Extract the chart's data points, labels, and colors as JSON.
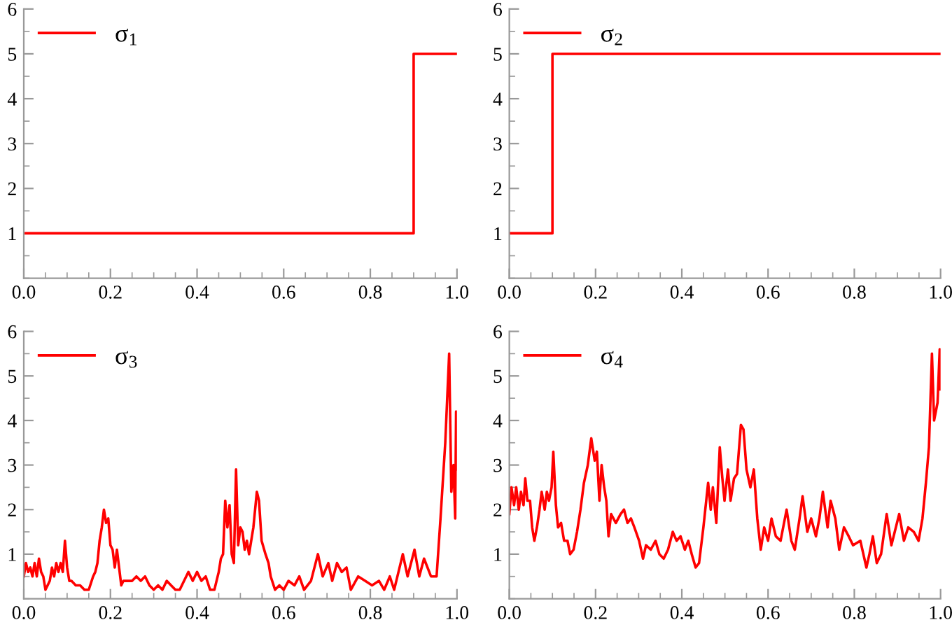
{
  "chart_data": [
    {
      "type": "step",
      "xlim": [
        0,
        1
      ],
      "ylim": [
        0,
        6
      ],
      "xticks": [
        {
          "value": 0,
          "label": "0.0"
        },
        {
          "value": 0.2,
          "label": "0.2"
        },
        {
          "value": 0.4,
          "label": "0.4"
        },
        {
          "value": 0.6,
          "label": "0.6"
        },
        {
          "value": 0.8,
          "label": "0.8"
        },
        {
          "value": 1,
          "label": "1.0"
        }
      ],
      "yticks": [
        1,
        2,
        3,
        4,
        5,
        6
      ],
      "grid": false,
      "legend": "top left",
      "series": [
        {
          "name": "σ$_{1}$",
          "color": "#ff0000",
          "x": [
            0,
            0.9,
            1
          ],
          "values": [
            1,
            5,
            5
          ]
        }
      ]
    },
    {
      "type": "step",
      "xlim": [
        0,
        1
      ],
      "ylim": [
        0,
        6
      ],
      "xticks": [
        {
          "value": 0,
          "label": "0.0"
        },
        {
          "value": 0.2,
          "label": "0.2"
        },
        {
          "value": 0.4,
          "label": "0.4"
        },
        {
          "value": 0.6,
          "label": "0.6"
        },
        {
          "value": 0.8,
          "label": "0.8"
        },
        {
          "value": 1,
          "label": "1.0"
        }
      ],
      "yticks": [
        1,
        2,
        3,
        4,
        5,
        6
      ],
      "grid": false,
      "legend": "top left",
      "series": [
        {
          "name": "σ$_{2}$",
          "color": "#ff0000",
          "x": [
            0,
            0.1,
            1
          ],
          "values": [
            1,
            5,
            5
          ]
        }
      ]
    },
    {
      "type": "line",
      "xlim": [
        0,
        1
      ],
      "ylim": [
        0,
        6
      ],
      "xticks": [
        {
          "value": 0,
          "label": "0.0"
        },
        {
          "value": 0.2,
          "label": "0.2"
        },
        {
          "value": 0.4,
          "label": "0.4"
        },
        {
          "value": 0.6,
          "label": "0.6"
        },
        {
          "value": 0.8,
          "label": "0.8"
        },
        {
          "value": 1,
          "label": "1.0"
        }
      ],
      "yticks": [
        1,
        2,
        3,
        4,
        5,
        6
      ],
      "grid": false,
      "legend": "top left",
      "series": [
        {
          "name": "σ$_{3}$",
          "color": "#ff0000",
          "x": [
            0,
            0.005,
            0.01,
            0.015,
            0.02,
            0.025,
            0.03,
            0.035,
            0.04,
            0.045,
            0.05,
            0.055,
            0.06,
            0.065,
            0.07,
            0.075,
            0.08,
            0.085,
            0.09,
            0.095,
            0.1,
            0.105,
            0.11,
            0.12,
            0.13,
            0.14,
            0.15,
            0.16,
            0.165,
            0.17,
            0.175,
            0.18,
            0.185,
            0.19,
            0.195,
            0.2,
            0.205,
            0.21,
            0.215,
            0.22,
            0.225,
            0.23,
            0.24,
            0.25,
            0.26,
            0.27,
            0.28,
            0.29,
            0.3,
            0.31,
            0.32,
            0.33,
            0.34,
            0.35,
            0.36,
            0.37,
            0.38,
            0.39,
            0.4,
            0.41,
            0.42,
            0.43,
            0.44,
            0.45,
            0.455,
            0.46,
            0.465,
            0.47,
            0.475,
            0.48,
            0.485,
            0.49,
            0.495,
            0.5,
            0.505,
            0.51,
            0.515,
            0.52,
            0.53,
            0.538,
            0.543,
            0.549,
            0.558,
            0.565,
            0.57,
            0.58,
            0.59,
            0.6,
            0.611,
            0.625,
            0.636,
            0.647,
            0.663,
            0.679,
            0.69,
            0.703,
            0.712,
            0.723,
            0.734,
            0.745,
            0.755,
            0.772,
            0.788,
            0.804,
            0.82,
            0.832,
            0.845,
            0.855,
            0.875,
            0.886,
            0.902,
            0.913,
            0.924,
            0.94,
            0.953,
            0.962,
            0.973,
            0.982,
            0.987,
            0.992,
            0.996,
            0.998,
            1
          ],
          "values": [
            0.5,
            0.8,
            0.6,
            0.7,
            0.5,
            0.8,
            0.5,
            0.9,
            0.6,
            0.5,
            0.2,
            0.3,
            0.4,
            0.7,
            0.5,
            0.8,
            0.6,
            0.8,
            0.6,
            1.3,
            0.7,
            0.4,
            0.4,
            0.3,
            0.3,
            0.2,
            0.2,
            0.5,
            0.6,
            0.8,
            1.3,
            1.6,
            2.0,
            1.7,
            1.8,
            1.2,
            1.1,
            0.7,
            1.1,
            0.7,
            0.3,
            0.4,
            0.4,
            0.4,
            0.5,
            0.4,
            0.5,
            0.3,
            0.2,
            0.3,
            0.2,
            0.4,
            0.3,
            0.2,
            0.2,
            0.4,
            0.6,
            0.4,
            0.6,
            0.4,
            0.5,
            0.2,
            0.2,
            0.6,
            0.9,
            1.0,
            2.2,
            1.6,
            2.1,
            1.0,
            0.8,
            2.9,
            1.2,
            1.6,
            1.5,
            1.1,
            1.3,
            1.0,
            1.6,
            2.4,
            2.2,
            1.3,
            1.0,
            0.8,
            0.5,
            0.2,
            0.3,
            0.2,
            0.4,
            0.3,
            0.5,
            0.2,
            0.4,
            1.0,
            0.5,
            0.8,
            0.4,
            0.8,
            0.6,
            0.7,
            0.2,
            0.5,
            0.4,
            0.3,
            0.4,
            0.2,
            0.5,
            0.2,
            1.0,
            0.5,
            1.1,
            0.5,
            0.9,
            0.5,
            0.5,
            1.8,
            3.5,
            5.5,
            2.4,
            3.0,
            1.8,
            4.2,
            2.9
          ]
        }
      ]
    },
    {
      "type": "line",
      "xlim": [
        0,
        1
      ],
      "ylim": [
        0,
        6
      ],
      "xticks": [
        {
          "value": 0,
          "label": "0.0"
        },
        {
          "value": 0.2,
          "label": "0.2"
        },
        {
          "value": 0.4,
          "label": "0.4"
        },
        {
          "value": 0.6,
          "label": "0.6"
        },
        {
          "value": 0.8,
          "label": "0.8"
        },
        {
          "value": 1,
          "label": "1.0"
        }
      ],
      "yticks": [
        1,
        2,
        3,
        4,
        5,
        6
      ],
      "grid": false,
      "legend": "top left",
      "series": [
        {
          "name": "σ$_{4}$",
          "color": "#ff0000",
          "x": [
            0,
            0.005,
            0.011,
            0.016,
            0.022,
            0.027,
            0.033,
            0.037,
            0.042,
            0.048,
            0.053,
            0.058,
            0.064,
            0.07,
            0.075,
            0.082,
            0.087,
            0.092,
            0.098,
            0.102,
            0.108,
            0.113,
            0.12,
            0.127,
            0.135,
            0.141,
            0.149,
            0.157,
            0.165,
            0.173,
            0.182,
            0.19,
            0.198,
            0.203,
            0.209,
            0.214,
            0.22,
            0.225,
            0.23,
            0.236,
            0.247,
            0.258,
            0.266,
            0.274,
            0.282,
            0.29,
            0.301,
            0.31,
            0.317,
            0.328,
            0.339,
            0.348,
            0.358,
            0.368,
            0.379,
            0.388,
            0.397,
            0.407,
            0.415,
            0.423,
            0.432,
            0.44,
            0.45,
            0.461,
            0.467,
            0.472,
            0.48,
            0.488,
            0.494,
            0.499,
            0.507,
            0.513,
            0.521,
            0.528,
            0.537,
            0.543,
            0.55,
            0.559,
            0.567,
            0.575,
            0.583,
            0.591,
            0.6,
            0.608,
            0.618,
            0.629,
            0.643,
            0.654,
            0.662,
            0.673,
            0.68,
            0.691,
            0.7,
            0.711,
            0.719,
            0.727,
            0.738,
            0.745,
            0.756,
            0.765,
            0.776,
            0.787,
            0.797,
            0.814,
            0.828,
            0.835,
            0.843,
            0.852,
            0.862,
            0.875,
            0.886,
            0.904,
            0.915,
            0.925,
            0.938,
            0.949,
            0.958,
            0.966,
            0.973,
            0.98,
            0.985,
            0.993,
            0.998,
            1
          ],
          "values": [
            1.9,
            2.5,
            2.1,
            2.5,
            2.0,
            2.4,
            2.1,
            2.7,
            2.2,
            2.2,
            1.6,
            1.3,
            1.6,
            2.0,
            2.4,
            2.0,
            2.4,
            2.2,
            2.5,
            3.3,
            2.1,
            1.6,
            1.7,
            1.3,
            1.3,
            1.0,
            1.1,
            1.5,
            2.0,
            2.6,
            3.0,
            3.6,
            3.1,
            3.3,
            2.2,
            3.0,
            2.5,
            2.2,
            1.4,
            1.9,
            1.7,
            1.9,
            2.0,
            1.7,
            1.8,
            1.6,
            1.3,
            0.9,
            1.2,
            1.1,
            1.3,
            1.0,
            0.9,
            1.1,
            1.5,
            1.3,
            1.4,
            1.1,
            1.3,
            1.0,
            0.7,
            0.8,
            1.6,
            2.6,
            2.0,
            2.5,
            1.7,
            3.4,
            2.7,
            2.2,
            2.9,
            2.2,
            2.7,
            2.8,
            3.9,
            3.8,
            2.9,
            2.5,
            2.9,
            1.8,
            1.1,
            1.6,
            1.3,
            1.8,
            1.4,
            1.3,
            2.0,
            1.3,
            1.1,
            1.8,
            2.3,
            1.5,
            1.8,
            1.4,
            1.8,
            2.4,
            1.6,
            2.2,
            1.8,
            1.1,
            1.6,
            1.4,
            1.2,
            1.3,
            0.7,
            1.0,
            1.4,
            0.8,
            1.0,
            1.9,
            1.2,
            1.9,
            1.3,
            1.6,
            1.5,
            1.3,
            1.8,
            2.6,
            3.4,
            5.5,
            4.0,
            4.4,
            5.6,
            4.7
          ]
        }
      ]
    }
  ]
}
